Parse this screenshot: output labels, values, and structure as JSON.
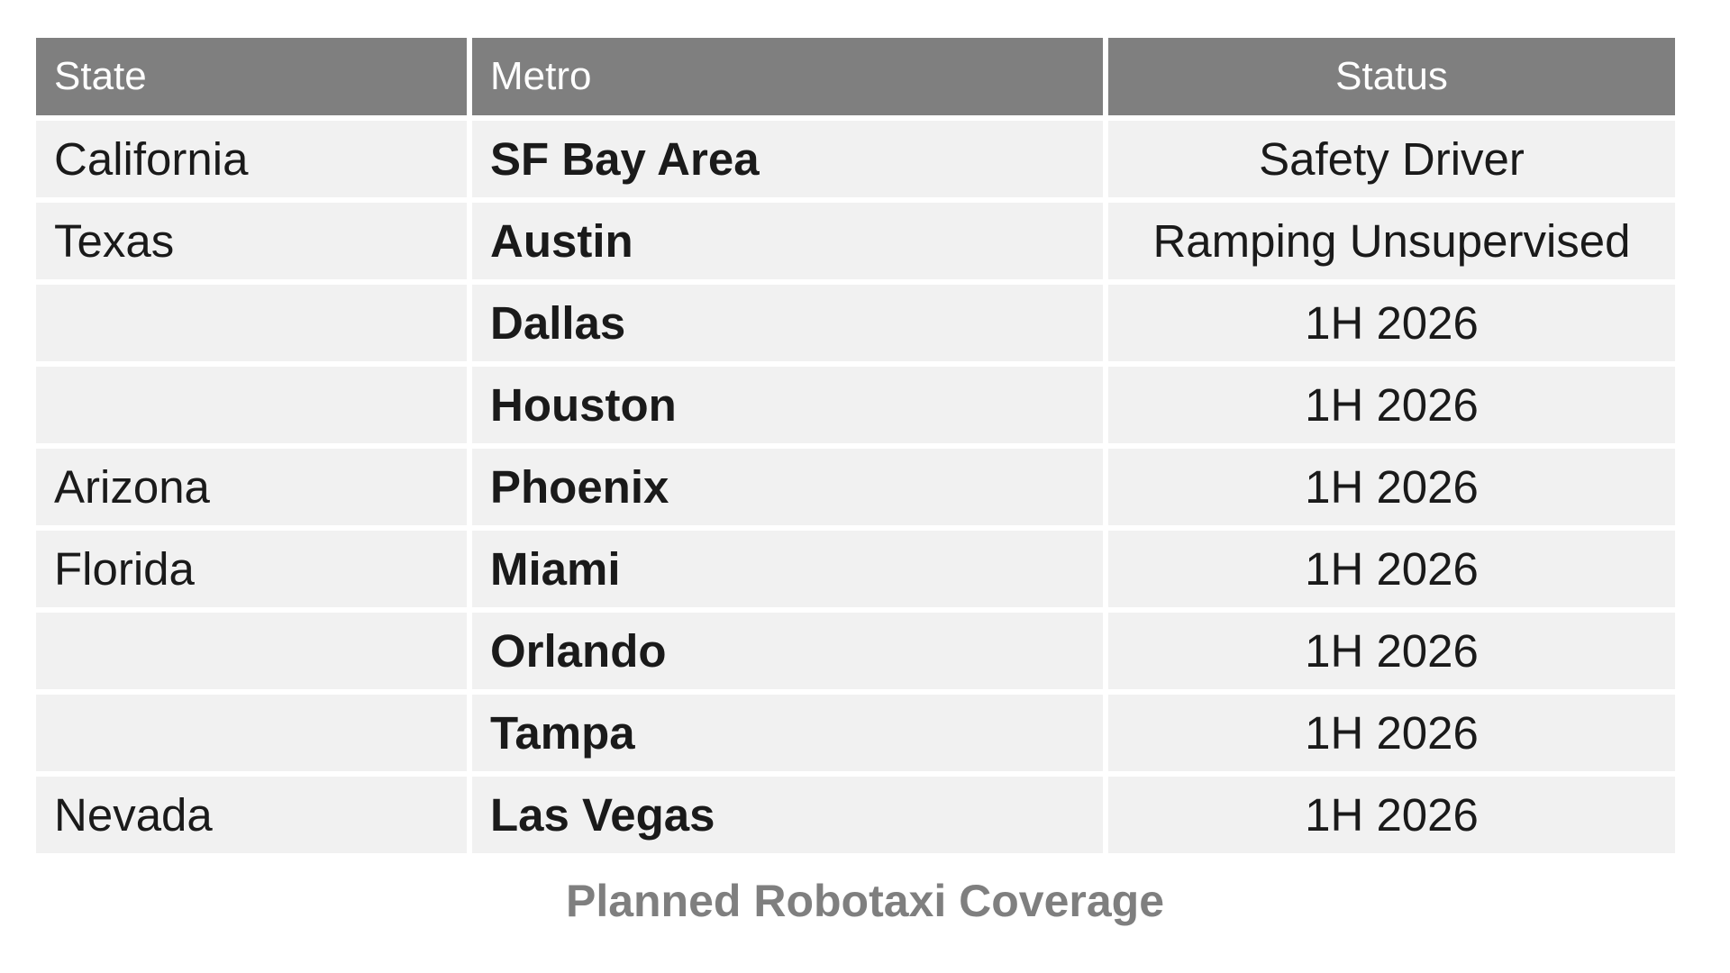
{
  "chart_data": {
    "type": "table",
    "title": "Planned Robotaxi Coverage",
    "columns": [
      "State",
      "Metro",
      "Status"
    ],
    "rows": [
      {
        "state": "California",
        "metro": "SF Bay Area",
        "status": "Safety Driver"
      },
      {
        "state": "Texas",
        "metro": "Austin",
        "status": "Ramping Unsupervised"
      },
      {
        "state": "",
        "metro": "Dallas",
        "status": "1H 2026"
      },
      {
        "state": "",
        "metro": "Houston",
        "status": "1H 2026"
      },
      {
        "state": "Arizona",
        "metro": "Phoenix",
        "status": "1H 2026"
      },
      {
        "state": "Florida",
        "metro": "Miami",
        "status": "1H 2026"
      },
      {
        "state": "",
        "metro": "Orlando",
        "status": "1H 2026"
      },
      {
        "state": "",
        "metro": "Tampa",
        "status": "1H 2026"
      },
      {
        "state": "Nevada",
        "metro": "Las Vegas",
        "status": "1H 2026"
      }
    ],
    "layout": {
      "header_align": [
        "left",
        "left",
        "center"
      ],
      "body_align": [
        "left",
        "left",
        "center"
      ],
      "metro_column_bold": true,
      "grid": "white gutters between rows and columns"
    }
  },
  "caption": {
    "text": "Planned Robotaxi Coverage"
  },
  "colors": {
    "header_bg": "#7f7f7f",
    "header_text": "#ffffff",
    "row_bg": "#f1f1f1",
    "body_text": "#1a1a1a",
    "caption_text": "#7f7f7f",
    "page_bg": "#ffffff"
  }
}
